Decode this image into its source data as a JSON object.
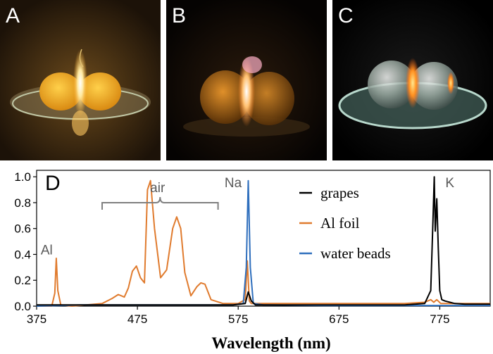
{
  "panels": [
    {
      "letter": "A",
      "description": "grapes under flame"
    },
    {
      "letter": "B",
      "description": "Al foil plasma"
    },
    {
      "letter": "C",
      "description": "water beads"
    }
  ],
  "chart_data": {
    "type": "line",
    "panel_label": "D",
    "xlabel": "Wavelength (nm)",
    "ylabel": "",
    "xlim": [
      375,
      825
    ],
    "ylim": [
      0,
      1.05
    ],
    "xticks": [
      375,
      475,
      575,
      675,
      775
    ],
    "yticks": [
      0.0,
      0.2,
      0.4,
      0.6,
      0.8,
      1.0
    ],
    "ytick_labels": [
      "0.0",
      "0.2",
      "0.4",
      "0.6",
      "0.8",
      "1.0"
    ],
    "legend_position": "center-right",
    "annotations": [
      {
        "text": "Al",
        "x": 385,
        "y": 0.4
      },
      {
        "text": "air",
        "x": 495,
        "y": 0.88
      },
      {
        "text": "Na",
        "x": 570,
        "y": 0.92
      },
      {
        "text": "K",
        "x": 785,
        "y": 0.92
      }
    ],
    "bracket": {
      "x_start": 440,
      "x_end": 555,
      "y": 0.8
    },
    "series": [
      {
        "name": "grapes",
        "color": "#000000",
        "x": [
          375,
          420,
          470,
          520,
          570,
          582,
          585,
          588,
          592,
          610,
          660,
          700,
          740,
          760,
          766,
          768,
          769.5,
          770.5,
          772,
          773.5,
          775,
          777,
          780,
          785,
          790,
          800,
          825
        ],
        "y": [
          0.01,
          0.01,
          0.01,
          0.01,
          0.01,
          0.02,
          0.11,
          0.04,
          0.01,
          0.01,
          0.01,
          0.01,
          0.01,
          0.02,
          0.12,
          0.6,
          1.0,
          0.58,
          0.83,
          0.45,
          0.12,
          0.05,
          0.04,
          0.03,
          0.02,
          0.015,
          0.015
        ]
      },
      {
        "name": "Al foil",
        "color": "#e07b2e",
        "x": [
          375,
          390,
          393,
          394.5,
          396,
          399,
          410,
          440,
          450,
          456,
          462,
          466,
          470,
          474,
          478,
          482,
          485,
          488,
          492,
          498,
          504,
          510,
          514,
          518,
          522,
          528,
          534,
          538,
          542,
          548,
          560,
          575,
          582,
          584,
          585,
          586,
          588,
          592,
          610,
          660,
          700,
          740,
          760,
          766,
          769,
          772,
          776,
          790,
          825
        ],
        "y": [
          0.0,
          0.0,
          0.1,
          0.37,
          0.12,
          0.01,
          0.0,
          0.02,
          0.06,
          0.09,
          0.07,
          0.14,
          0.27,
          0.31,
          0.22,
          0.18,
          0.9,
          0.97,
          0.6,
          0.22,
          0.28,
          0.6,
          0.69,
          0.6,
          0.26,
          0.08,
          0.15,
          0.18,
          0.17,
          0.05,
          0.02,
          0.02,
          0.05,
          0.35,
          0.2,
          0.04,
          0.02,
          0.02,
          0.02,
          0.02,
          0.02,
          0.02,
          0.03,
          0.05,
          0.03,
          0.05,
          0.02,
          0.02,
          0.02
        ]
      },
      {
        "name": "water beads",
        "color": "#2f6fbd",
        "x": [
          375,
          420,
          470,
          520,
          570,
          580,
          583,
          585,
          587,
          590,
          600,
          660,
          700,
          760,
          825
        ],
        "y": [
          0.0,
          0.01,
          0.01,
          0.01,
          0.01,
          0.02,
          0.3,
          0.97,
          0.3,
          0.02,
          0.01,
          0.005,
          0.005,
          0.005,
          0.005
        ]
      }
    ]
  }
}
